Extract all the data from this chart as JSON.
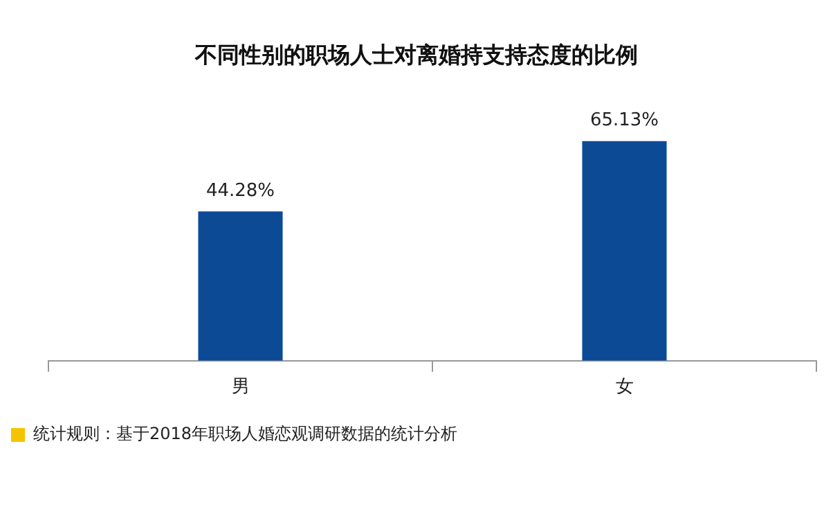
{
  "chart_data": {
    "type": "bar",
    "title": "不同性别的职场人士对离婚持支持态度的比例",
    "categories": [
      "男",
      "女"
    ],
    "values": [
      44.28,
      65.13
    ],
    "value_labels": [
      "44.28%",
      "65.13%"
    ],
    "color": "#0d4a96",
    "grid": false,
    "legend": false,
    "annotations": [
      "统计规则：基于2018年职场人婚恋观调研数据的统计分析"
    ]
  }
}
